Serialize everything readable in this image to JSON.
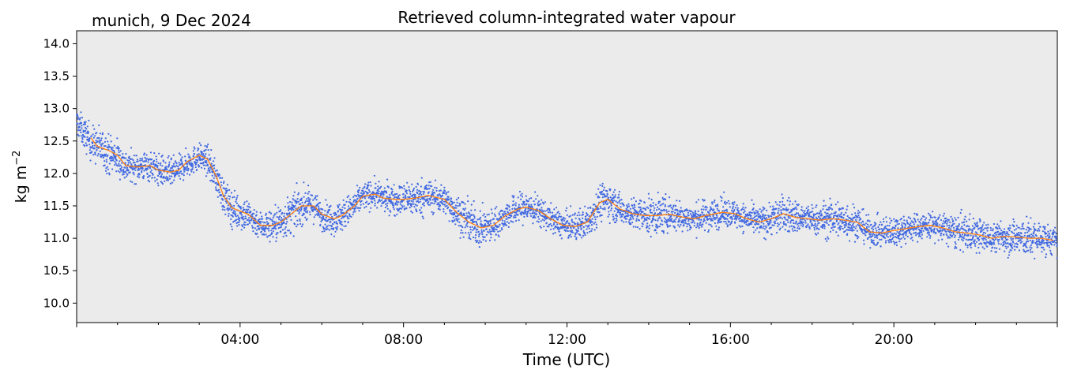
{
  "location_date": "munich, 9 Dec 2024",
  "chart_data": {
    "type": "scatter",
    "title": "Retrieved column-integrated water vapour",
    "xlabel": "Time (UTC)",
    "ylabel_base": "kg m",
    "ylabel_exp": "−2",
    "xlim_hours": [
      0,
      24
    ],
    "ylim": [
      9.7,
      14.2
    ],
    "yticks": [
      "10.0",
      "10.5",
      "11.0",
      "11.5",
      "12.0",
      "12.5",
      "13.0",
      "13.5",
      "14.0"
    ],
    "xticks": [
      {
        "hour": 4,
        "label": "04:00"
      },
      {
        "hour": 8,
        "label": "08:00"
      },
      {
        "hour": 12,
        "label": "12:00"
      },
      {
        "hour": 16,
        "label": "16:00"
      },
      {
        "hour": 20,
        "label": "20:00"
      }
    ],
    "series": [
      {
        "kind": "scatter",
        "color": "#4169e1",
        "x_hours": [
          0.0,
          0.2,
          0.4,
          0.6,
          0.8,
          1.0,
          1.2,
          1.5,
          1.8,
          2.0,
          2.3,
          2.5,
          2.7,
          3.0,
          3.2,
          3.4,
          3.6,
          3.8,
          4.0,
          4.2,
          4.5,
          4.8,
          5.0,
          5.3,
          5.5,
          5.8,
          6.0,
          6.3,
          6.5,
          6.8,
          7.0,
          7.3,
          7.5,
          7.8,
          8.0,
          8.3,
          8.6,
          9.0,
          9.3,
          9.6,
          9.9,
          10.2,
          10.5,
          10.8,
          11.0,
          11.3,
          11.6,
          11.9,
          12.2,
          12.5,
          12.8,
          13.0,
          13.3,
          13.6,
          13.9,
          14.2,
          14.5,
          14.8,
          15.1,
          15.4,
          15.8,
          16.1,
          16.4,
          16.7,
          17.0,
          17.3,
          17.6,
          17.9,
          18.2,
          18.5,
          18.8,
          19.1,
          19.4,
          19.7,
          20.0,
          20.3,
          20.6,
          20.9,
          21.2,
          21.5,
          21.8,
          22.1,
          22.4,
          22.7,
          23.0,
          23.3,
          23.6,
          24.0
        ],
        "y": [
          12.8,
          12.6,
          12.45,
          12.4,
          12.3,
          12.25,
          12.1,
          12.1,
          12.12,
          12.05,
          12.0,
          12.05,
          12.15,
          12.25,
          12.2,
          11.95,
          11.65,
          11.45,
          11.4,
          11.35,
          11.2,
          11.2,
          11.25,
          11.4,
          11.5,
          11.5,
          11.35,
          11.3,
          11.35,
          11.5,
          11.65,
          11.68,
          11.62,
          11.6,
          11.6,
          11.62,
          11.65,
          11.6,
          11.4,
          11.25,
          11.15,
          11.2,
          11.35,
          11.45,
          11.48,
          11.42,
          11.3,
          11.2,
          11.18,
          11.25,
          11.55,
          11.6,
          11.45,
          11.38,
          11.35,
          11.35,
          11.37,
          11.33,
          11.3,
          11.35,
          11.4,
          11.38,
          11.3,
          11.25,
          11.3,
          11.38,
          11.32,
          11.3,
          11.28,
          11.3,
          11.28,
          11.25,
          11.1,
          11.08,
          11.12,
          11.15,
          11.18,
          11.2,
          11.16,
          11.1,
          11.08,
          11.05,
          11.0,
          11.03,
          11.02,
          11.0,
          11.0,
          10.95
        ]
      },
      {
        "kind": "line",
        "color": "#ff7f0e",
        "x_hours": [
          0.35,
          0.5,
          0.8,
          1.0,
          1.2,
          1.5,
          1.8,
          2.0,
          2.3,
          2.5,
          2.7,
          3.0,
          3.2,
          3.4,
          3.6,
          3.8,
          4.0,
          4.2,
          4.5,
          4.8,
          5.0,
          5.3,
          5.5,
          5.8,
          6.0,
          6.3,
          6.5,
          6.8,
          7.0,
          7.3,
          7.5,
          7.8,
          8.0,
          8.3,
          8.6,
          9.0,
          9.3,
          9.6,
          9.9,
          10.2,
          10.5,
          10.8,
          11.0,
          11.3,
          11.6,
          11.9,
          12.2,
          12.5,
          12.8,
          13.0,
          13.3,
          13.6,
          13.9,
          14.2,
          14.5,
          14.8,
          15.1,
          15.4,
          15.8,
          16.1,
          16.4,
          16.7,
          17.0,
          17.3,
          17.6,
          17.9,
          18.2,
          18.5,
          18.8,
          19.1,
          19.4,
          19.7,
          20.0,
          20.3,
          20.6,
          20.9,
          21.2,
          21.5,
          21.8,
          22.1,
          22.4,
          22.7,
          23.0,
          23.3,
          23.6,
          23.9
        ],
        "y": [
          12.55,
          12.42,
          12.35,
          12.28,
          12.12,
          12.1,
          12.12,
          12.05,
          12.02,
          12.05,
          12.18,
          12.28,
          12.22,
          11.98,
          11.65,
          11.47,
          11.42,
          11.37,
          11.2,
          11.2,
          11.25,
          11.4,
          11.5,
          11.5,
          11.37,
          11.3,
          11.35,
          11.5,
          11.65,
          11.68,
          11.62,
          11.6,
          11.6,
          11.62,
          11.66,
          11.6,
          11.4,
          11.25,
          11.16,
          11.2,
          11.35,
          11.45,
          11.48,
          11.43,
          11.3,
          11.2,
          11.18,
          11.25,
          11.55,
          11.6,
          11.45,
          11.38,
          11.35,
          11.35,
          11.37,
          11.33,
          11.3,
          11.35,
          11.4,
          11.38,
          11.3,
          11.25,
          11.3,
          11.38,
          11.32,
          11.3,
          11.28,
          11.3,
          11.28,
          11.25,
          11.1,
          11.08,
          11.12,
          11.15,
          11.18,
          11.2,
          11.16,
          11.1,
          11.08,
          11.05,
          11.0,
          11.03,
          11.02,
          11.0,
          11.0,
          10.97
        ]
      }
    ]
  }
}
